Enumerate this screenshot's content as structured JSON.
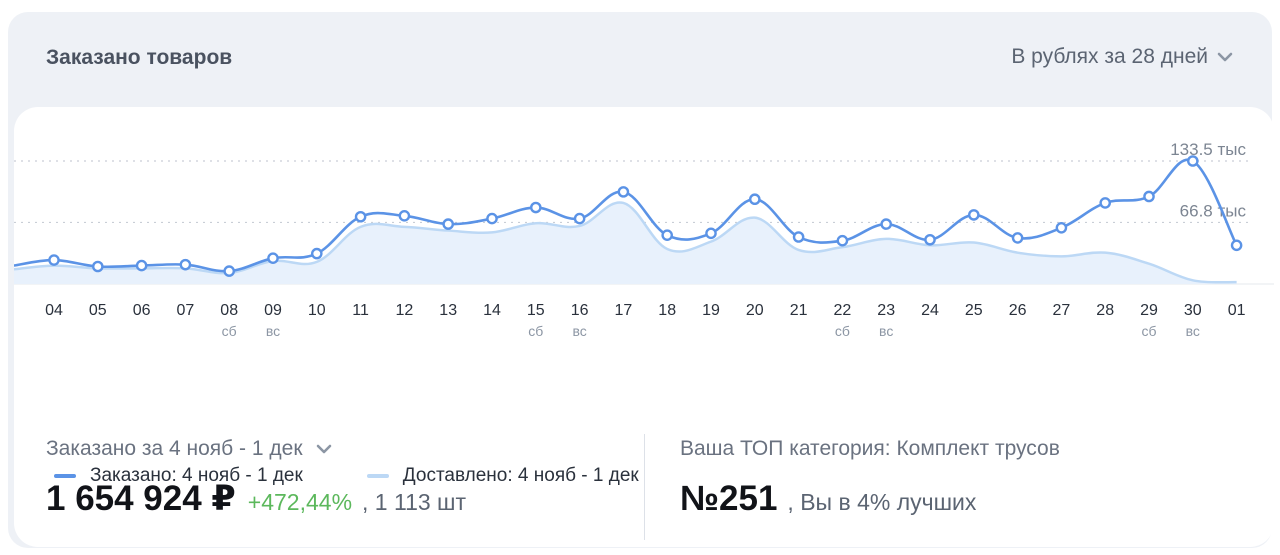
{
  "header": {
    "title": "Заказано товаров",
    "period_label": "В рублях за 28 дней"
  },
  "chart_data": {
    "type": "line",
    "x": [
      "04",
      "05",
      "06",
      "07",
      "08",
      "09",
      "10",
      "11",
      "12",
      "13",
      "14",
      "15",
      "16",
      "17",
      "18",
      "19",
      "20",
      "21",
      "22",
      "23",
      "24",
      "25",
      "26",
      "27",
      "28",
      "29",
      "30",
      "01"
    ],
    "weekday_labels": [
      "",
      "",
      "",
      "",
      "сб",
      "вс",
      "",
      "",
      "",
      "",
      "",
      "сб",
      "вс",
      "",
      "",
      "",
      "",
      "",
      "сб",
      "вс",
      "",
      "",
      "",
      "",
      "",
      "сб",
      "вс",
      ""
    ],
    "y_ticks": [
      {
        "value": 133.5,
        "label": "133.5 тыс"
      },
      {
        "value": 66.8,
        "label": "66.8 тыс"
      }
    ],
    "ylim": [
      0,
      138
    ],
    "grid": "dotted",
    "series": [
      {
        "name": "Заказано: 4 нояб - 1 дек",
        "color": "#5b93e6",
        "markers": true,
        "values": [
          26,
          19,
          20,
          21,
          14,
          28,
          33,
          73,
          74,
          65,
          71,
          83,
          71,
          100,
          53,
          55,
          92,
          51,
          47,
          65,
          48,
          75,
          50,
          61,
          88,
          95,
          133.5,
          42
        ],
        "lead_in": 20
      },
      {
        "name": "Доставлено: 4 нояб - 1 дек",
        "color": "#bcd8f5",
        "markers": false,
        "values": [
          20,
          17,
          17,
          17,
          12,
          25,
          24,
          62,
          62,
          58,
          56,
          66,
          63,
          88,
          38,
          46,
          72,
          37,
          40,
          49,
          42,
          45,
          34,
          30,
          34,
          22,
          4,
          2
        ],
        "lead_in": 16
      }
    ]
  },
  "legend": {
    "items": [
      {
        "label": "Заказано: 4 нояб - 1 дек",
        "color": "#5b93e6"
      },
      {
        "label": "Доставлено: 4 нояб - 1 дек",
        "color": "#bcd8f5"
      }
    ]
  },
  "stats": {
    "ordered_label": "Заказано за 4 нояб - 1 дек",
    "ordered_value": "1 654 924 ₽",
    "growth": "+472,44%",
    "units": ", 1 113 шт",
    "category_label": "Ваша ТОП категория: Комплект трусов",
    "rank": "№251",
    "rank_note": ", Вы в 4% лучших"
  },
  "colors": {
    "card_bg": "#eef1f6",
    "accent_blue": "#5b93e6",
    "light_blue": "#bcd8f5",
    "growth_green": "#5cb85c"
  }
}
